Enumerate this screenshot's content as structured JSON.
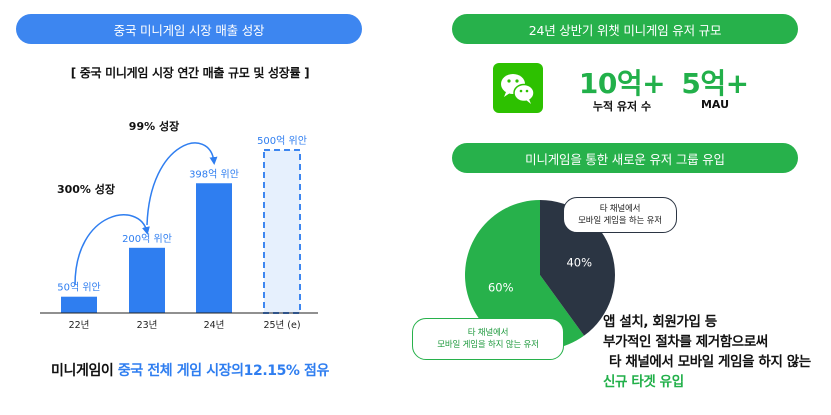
{
  "left_panel": {
    "title": "중국 미니게임 시장 매출 성장",
    "subtitle": "[ 중국 미니게임 시장 연간 매출 규모 및 성장률 ]",
    "bottom_note": {
      "prefix": "미니게임이 ",
      "highlight": "중국 전체 게임 시장의12.15% 점유"
    }
  },
  "chart_data": [
    {
      "type": "bar",
      "title": "[ 중국 미니게임 시장 연간 매출 규모 및 성장률 ]",
      "categories": [
        "22년",
        "23년",
        "24년",
        "25년 (e)"
      ],
      "values": [
        50,
        200,
        398,
        500
      ],
      "value_labels": [
        "50억 위안",
        "200억 위안",
        "398억 위안",
        "500억 위안"
      ],
      "estimated": [
        false,
        false,
        false,
        true
      ],
      "annotations": [
        "300% 성장",
        "99% 성장"
      ],
      "ylim": [
        0,
        520
      ],
      "grid": false,
      "colors": {
        "bar": "#2f7ef0",
        "estimate_fill": "#e6f0fd",
        "estimate_border": "#3d86f0",
        "label": "#2f7ef0"
      }
    },
    {
      "type": "pie",
      "labels": [
        "60%",
        "40%"
      ],
      "values": [
        60,
        40
      ],
      "colors": [
        "#27b14b",
        "#2b3543"
      ]
    }
  ],
  "right_panel": {
    "title_users": "24년 상반기 위챗 미니게임 유저 규모",
    "stats": [
      {
        "value": "10억+",
        "label": "누적 유저 수"
      },
      {
        "value": "5억+",
        "label": "MAU"
      }
    ],
    "title_inflow": "미니게임을 통한 새로운 유저 그룹 유입",
    "callout_dark": [
      "타 채널에서",
      "모바일 게임을 하는 유저"
    ],
    "callout_green": [
      "타 채널에서",
      "모바일 게임을 하지 않는 유저"
    ],
    "description": {
      "line1": "앱 설치, 회원가입 등",
      "line2": "부가적인 절차를 제거함으로써",
      "line3": "타 채널에서 모바일 게임을 하지 않는",
      "line4": "신규 타겟 유입"
    },
    "icon": "wechat-icon"
  }
}
